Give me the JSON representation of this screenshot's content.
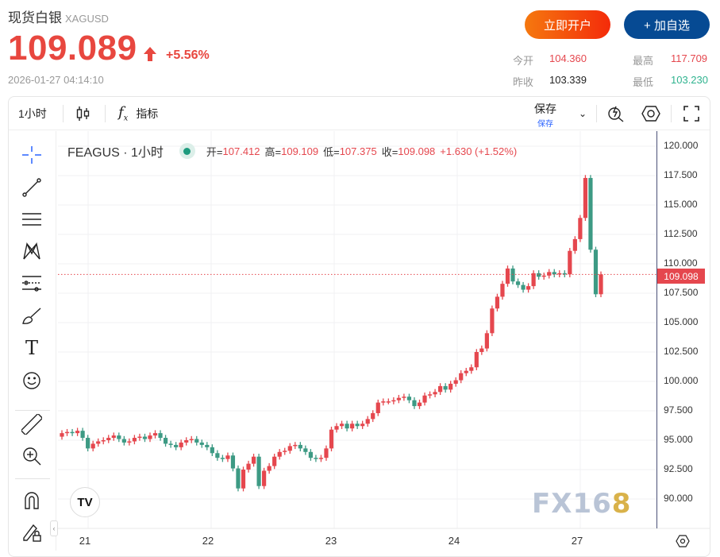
{
  "header": {
    "title": "现货白银",
    "symbol": "XAGUSD",
    "price": "109.089",
    "change": "+5.56%",
    "timestamp": "2026-01-27 04:14:10",
    "open_account_label": "立即开户",
    "add_watch_label": "+ 加自选",
    "stats": {
      "open_label": "今开",
      "open": "104.360",
      "prev_close_label": "昨收",
      "prev_close": "103.339",
      "high_label": "最高",
      "high": "117.709",
      "low_label": "最低",
      "low": "103.230"
    }
  },
  "colors": {
    "up": "#e5474e",
    "down": "#3d9a84",
    "price": "#e8473f"
  },
  "toolbar": {
    "interval": "1小时",
    "indicators_label": "指标",
    "save_label": "保存",
    "save_sub": "保存"
  },
  "legend": {
    "symbol": "FEAGUS · 1小时",
    "open_label": "开=",
    "open": "107.412",
    "high_label": "高=",
    "high": "109.109",
    "low_label": "低=",
    "low": "107.375",
    "close_label": "收=",
    "close": "109.098",
    "change": "+1.630 (+1.52%)"
  },
  "last_price_badge": "109.098",
  "watermark": "FX168",
  "chart_data": {
    "type": "candlestick",
    "interval": "1h",
    "ylim": [
      88.5,
      121
    ],
    "y_ticks": [
      "120.000",
      "117.500",
      "115.000",
      "112.500",
      "110.000",
      "107.500",
      "105.000",
      "102.500",
      "100.000",
      "97.500",
      "95.000",
      "92.500",
      "90.000"
    ],
    "x_ticks": [
      "21",
      "22",
      "23",
      "24",
      "27"
    ],
    "up_color": "#e5474e",
    "down_color": "#3d9a84",
    "first_open": 95.3,
    "closes": [
      95.6,
      95.7,
      95.6,
      95.8,
      95.2,
      94.3,
      94.7,
      94.9,
      95.0,
      95.2,
      95.4,
      95.1,
      94.8,
      94.9,
      95.2,
      95.3,
      95.1,
      95.4,
      95.6,
      95.2,
      94.7,
      94.6,
      94.4,
      94.8,
      95.0,
      95.1,
      94.8,
      94.6,
      94.4,
      93.9,
      93.5,
      93.4,
      93.7,
      92.6,
      90.9,
      92.5,
      93.0,
      93.6,
      91.1,
      92.4,
      92.8,
      93.6,
      94.0,
      94.1,
      94.5,
      94.6,
      94.3,
      94.0,
      93.5,
      93.4,
      93.5,
      94.3,
      95.9,
      96.2,
      96.4,
      96.0,
      96.4,
      96.2,
      96.4,
      96.8,
      97.3,
      98.2,
      98.3,
      98.3,
      98.4,
      98.6,
      98.7,
      98.4,
      97.9,
      98.2,
      98.8,
      98.9,
      99.1,
      99.6,
      99.3,
      99.8,
      100.1,
      100.7,
      100.9,
      101.2,
      102.5,
      102.8,
      104.1,
      106.2,
      107.2,
      108.3,
      109.6,
      108.5,
      108.2,
      107.8,
      108.1,
      109.2,
      108.9,
      109.0,
      109.3,
      109.1,
      109.2,
      109.1,
      111.1,
      112.1,
      113.9,
      117.3,
      111.2,
      107.412,
      109.098
    ],
    "last_price": 109.098
  }
}
